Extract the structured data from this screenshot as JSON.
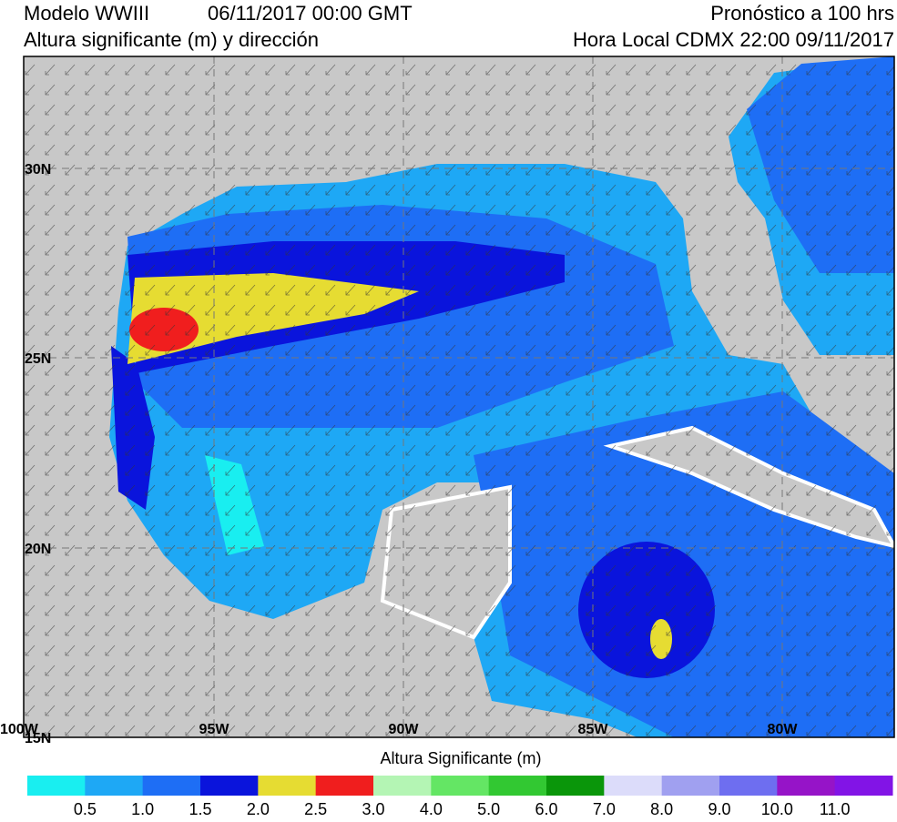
{
  "header": {
    "model": "Modelo WWIII",
    "run": "06/11/2017 00:00 GMT",
    "subtitle": "Altura significante (m) y dirección",
    "forecast": "Pronóstico a 100 hrs",
    "local_time": "Hora Local CDMX 22:00 09/11/2017"
  },
  "map": {
    "lat_labels": [
      "30N",
      "25N",
      "20N",
      "15N"
    ],
    "lon_labels": [
      "100W",
      "95W",
      "90W",
      "85W",
      "80W"
    ]
  },
  "colorbar": {
    "title": "Altura Significante (m)",
    "colors": [
      "#19eef0",
      "#1ea8f5",
      "#1e6ef5",
      "#0a14dc",
      "#e6dc32",
      "#f01e1e",
      "#b4f5b4",
      "#64e664",
      "#32c832",
      "#0a960a",
      "#dcdcfa",
      "#a0a0f0",
      "#6e6ef0",
      "#9614c8",
      "#8214e6"
    ],
    "labels": [
      "0.5",
      "1.0",
      "1.5",
      "2.0",
      "2.5",
      "3.0",
      "4.0",
      "5.0",
      "6.0",
      "7.0",
      "8.0",
      "9.0",
      "10.0",
      "11.0"
    ]
  }
}
